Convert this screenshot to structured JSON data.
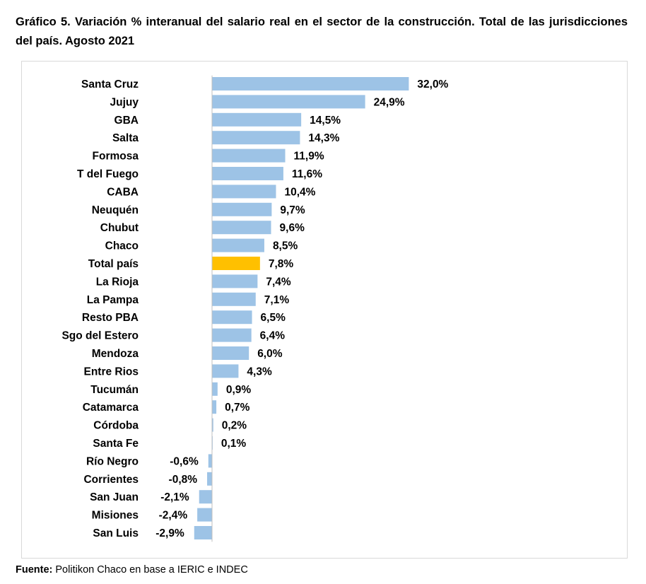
{
  "header": {
    "title": "Gráfico 5. Variación % interanual del salario real en el sector de la construcción. Total de las jurisdicciones del país. Agosto 2021"
  },
  "footer": {
    "source_label": "Fuente:",
    "source_text": "Politikon Chaco en base a IERIC e INDEC"
  },
  "colors": {
    "bar": "#9dc3e6",
    "highlight": "#ffc000",
    "axis": "#bfbfbf"
  },
  "chart_data": {
    "type": "bar",
    "orientation": "horizontal",
    "categories": [
      "Santa Cruz",
      "Jujuy",
      "GBA",
      "Salta",
      "Formosa",
      "T del Fuego",
      "CABA",
      "Neuquén",
      "Chubut",
      "Chaco",
      "Total país",
      "La Rioja",
      "La Pampa",
      "Resto PBA",
      "Sgo del Estero",
      "Mendoza",
      "Entre Rios",
      "Tucumán",
      "Catamarca",
      "Córdoba",
      "Santa Fe",
      "Río Negro",
      "Corrientes",
      "San Juan",
      "Misiones",
      "San Luis"
    ],
    "values": [
      32.0,
      24.9,
      14.5,
      14.3,
      11.9,
      11.6,
      10.4,
      9.7,
      9.6,
      8.5,
      7.8,
      7.4,
      7.1,
      6.5,
      6.4,
      6.0,
      4.3,
      0.9,
      0.7,
      0.2,
      0.1,
      -0.6,
      -0.8,
      -2.1,
      -2.4,
      -2.9
    ],
    "data_labels": [
      "32,0%",
      "24,9%",
      "14,5%",
      "14,3%",
      "11,9%",
      "11,6%",
      "10,4%",
      "9,7%",
      "9,6%",
      "8,5%",
      "7,8%",
      "7,4%",
      "7,1%",
      "6,5%",
      "6,4%",
      "6,0%",
      "4,3%",
      "0,9%",
      "0,7%",
      "0,2%",
      "0,1%",
      "-0,6%",
      "-0,8%",
      "-2,1%",
      "-2,4%",
      "-2,9%"
    ],
    "highlight_category": "Total país",
    "title": "Gráfico 5. Variación % interanual del salario real en el sector de la construcción. Total de las jurisdicciones del país. Agosto 2021",
    "xlabel": "",
    "ylabel": "",
    "grid": false,
    "legend": "none"
  }
}
